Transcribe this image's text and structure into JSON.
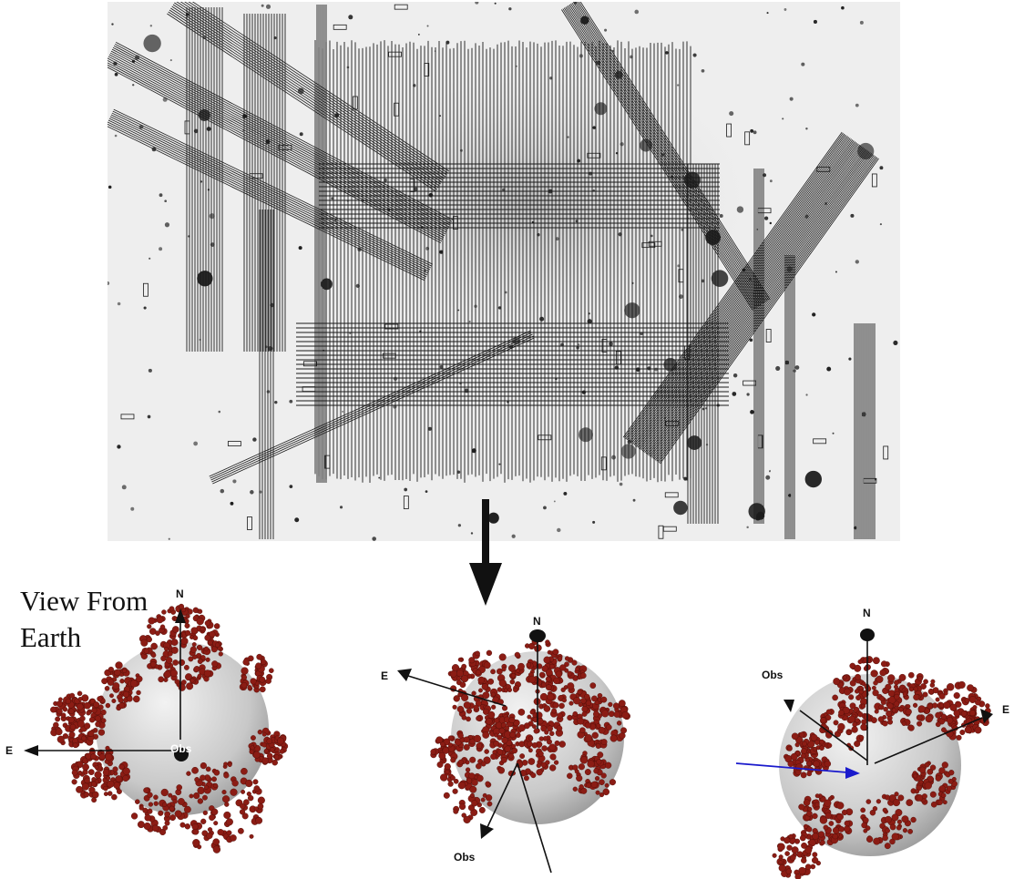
{
  "figure": {
    "view_title": "View From Earth",
    "panels": [
      {
        "north": "N",
        "east": "E",
        "observer": "Obs"
      },
      {
        "north": "N",
        "east": "E",
        "observer": "Obs"
      },
      {
        "north": "N",
        "east": "E",
        "observer": "Obs"
      }
    ]
  },
  "colors": {
    "background": "#ffffff",
    "sky": "#eeeeee",
    "slit": "#1a1a1a",
    "knot": "#8b1c14",
    "sphere": "#cfcfcf",
    "view_arrow": "#1a1acc"
  }
}
